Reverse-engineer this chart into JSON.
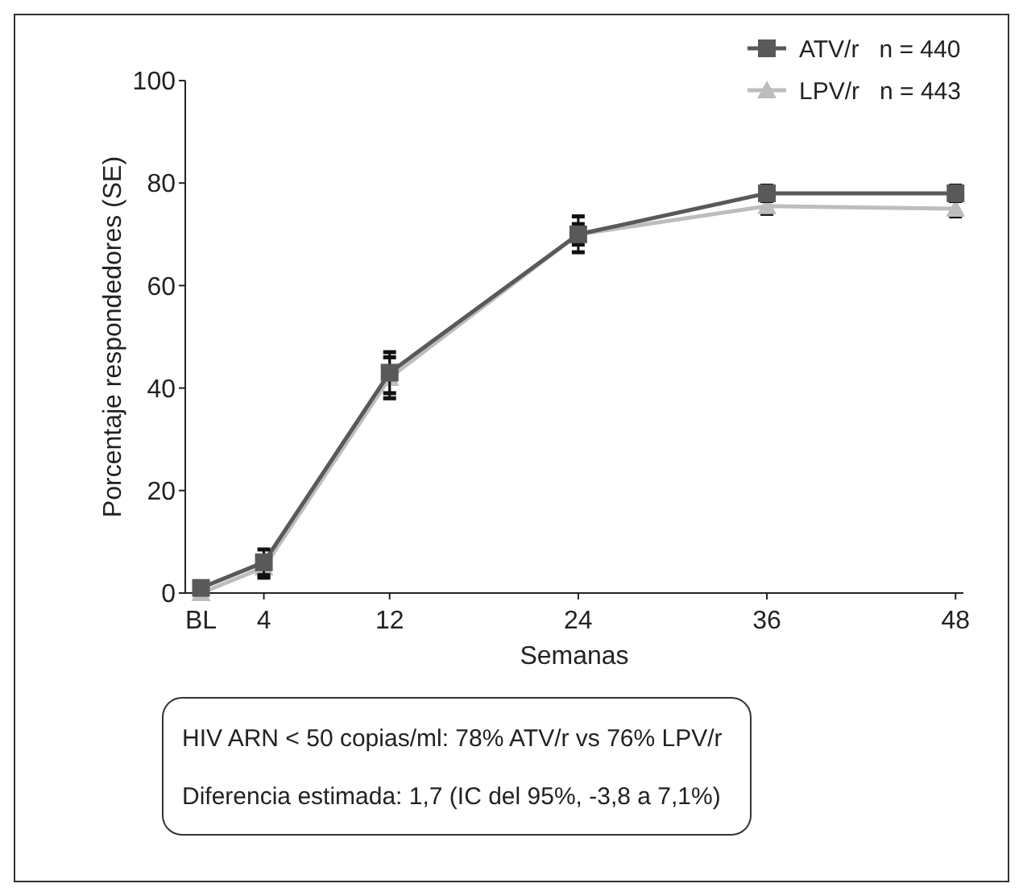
{
  "chart_data": {
    "type": "line",
    "xlabel": "Semanas",
    "ylabel": "Porcentaje respondedores (SE)",
    "x": [
      0,
      4,
      12,
      24,
      36,
      48
    ],
    "xlim": [
      -1,
      48.5
    ],
    "xticks": [
      {
        "value": 0,
        "label": "BL"
      },
      4,
      12,
      24,
      36,
      48
    ],
    "ylim": [
      0,
      100
    ],
    "yticks": [
      0,
      20,
      40,
      60,
      80,
      100
    ],
    "series": [
      {
        "name": "ATV/r   n = 440",
        "color": "#595959",
        "marker": "square",
        "values": [
          1,
          6,
          43,
          70,
          78,
          78
        ],
        "errors": [
          null,
          2.5,
          4,
          3.5,
          1.5,
          1.5
        ]
      },
      {
        "name": "LPV/r   n = 443",
        "color": "#bdbdbd",
        "marker": "triangle",
        "values": [
          0,
          5,
          42,
          70,
          75.5,
          75
        ],
        "errors": [
          null,
          2,
          4,
          2,
          1.5,
          1.5
        ]
      }
    ],
    "legend": "top right",
    "grid": false,
    "annotations": [
      "HIV ARN < 50 copias/ml: 78% ATV/r vs 76% LPV/r",
      "Diferencia estimada: 1,7 (IC del 95%, -3,8 a 7,1%)"
    ]
  }
}
